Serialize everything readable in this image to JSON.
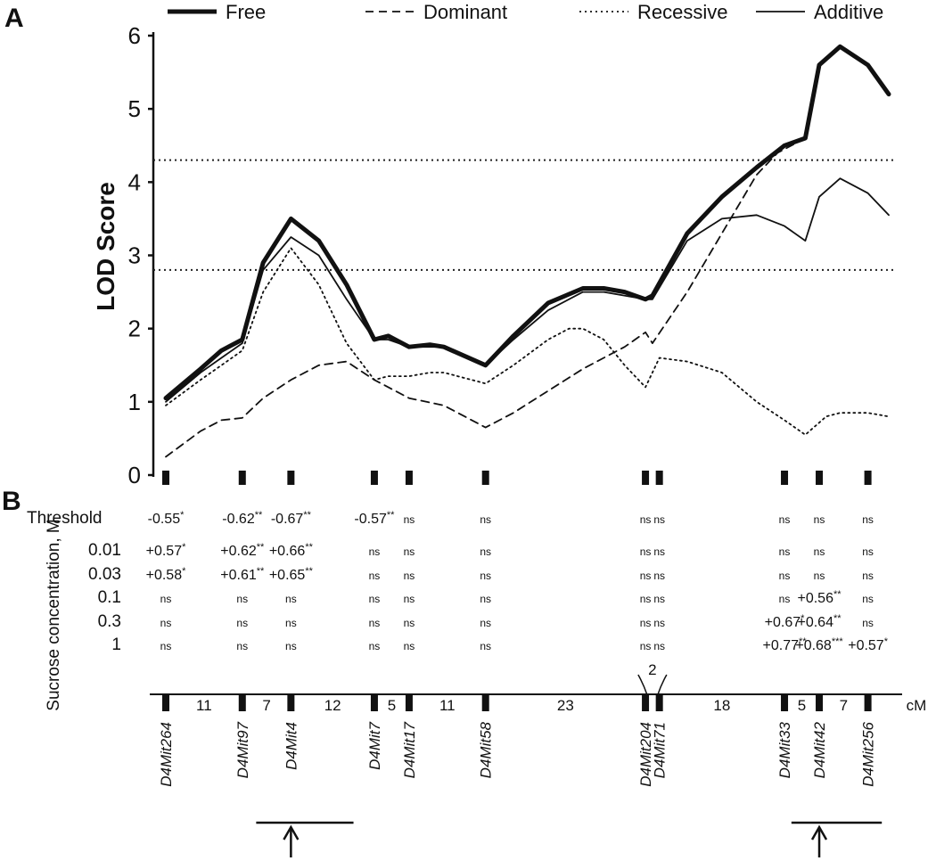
{
  "panel_a": "A",
  "panel_b": "B",
  "chart_data": {
    "type": "line",
    "ylabel": "LOD Score",
    "ylim": [
      0,
      6
    ],
    "yticks": [
      0,
      1,
      2,
      3,
      4,
      5,
      6
    ],
    "xlim": [
      0,
      104
    ],
    "xunit": "cM",
    "thresholds": [
      2.8,
      4.3
    ],
    "legend": [
      {
        "name": "Free",
        "style": "thick"
      },
      {
        "name": "Dominant",
        "style": "dashed"
      },
      {
        "name": "Recessive",
        "style": "dotted"
      },
      {
        "name": "Additive",
        "style": "solid"
      }
    ],
    "series": [
      {
        "name": "Free",
        "style": "thick",
        "points": [
          [
            0,
            1.05
          ],
          [
            5,
            1.45
          ],
          [
            8,
            1.7
          ],
          [
            11,
            1.85
          ],
          [
            14,
            2.9
          ],
          [
            18,
            3.5
          ],
          [
            22,
            3.2
          ],
          [
            26,
            2.6
          ],
          [
            30,
            1.85
          ],
          [
            32,
            1.9
          ],
          [
            35,
            1.75
          ],
          [
            38,
            1.78
          ],
          [
            40,
            1.75
          ],
          [
            46,
            1.5
          ],
          [
            50,
            1.9
          ],
          [
            55,
            2.35
          ],
          [
            60,
            2.55
          ],
          [
            63,
            2.55
          ],
          [
            66,
            2.5
          ],
          [
            69,
            2.4
          ],
          [
            70,
            2.45
          ],
          [
            75,
            3.3
          ],
          [
            80,
            3.8
          ],
          [
            85,
            4.2
          ],
          [
            89,
            4.5
          ],
          [
            92,
            4.6
          ],
          [
            94,
            5.6
          ],
          [
            97,
            5.85
          ],
          [
            101,
            5.6
          ],
          [
            104,
            5.2
          ]
        ]
      },
      {
        "name": "Additive",
        "style": "solid",
        "points": [
          [
            0,
            1.0
          ],
          [
            5,
            1.4
          ],
          [
            8,
            1.6
          ],
          [
            11,
            1.8
          ],
          [
            14,
            2.8
          ],
          [
            18,
            3.25
          ],
          [
            22,
            3.0
          ],
          [
            26,
            2.4
          ],
          [
            30,
            1.85
          ],
          [
            32,
            1.85
          ],
          [
            35,
            1.75
          ],
          [
            40,
            1.75
          ],
          [
            46,
            1.5
          ],
          [
            50,
            1.85
          ],
          [
            55,
            2.25
          ],
          [
            60,
            2.5
          ],
          [
            63,
            2.5
          ],
          [
            69,
            2.4
          ],
          [
            70,
            2.4
          ],
          [
            75,
            3.2
          ],
          [
            80,
            3.5
          ],
          [
            85,
            3.55
          ],
          [
            89,
            3.4
          ],
          [
            92,
            3.2
          ],
          [
            94,
            3.8
          ],
          [
            97,
            4.05
          ],
          [
            101,
            3.85
          ],
          [
            104,
            3.55
          ]
        ]
      },
      {
        "name": "Recessive",
        "style": "dotted",
        "points": [
          [
            0,
            0.95
          ],
          [
            5,
            1.3
          ],
          [
            8,
            1.5
          ],
          [
            11,
            1.7
          ],
          [
            14,
            2.5
          ],
          [
            18,
            3.1
          ],
          [
            22,
            2.6
          ],
          [
            26,
            1.8
          ],
          [
            30,
            1.3
          ],
          [
            32,
            1.35
          ],
          [
            35,
            1.35
          ],
          [
            38,
            1.4
          ],
          [
            40,
            1.4
          ],
          [
            46,
            1.25
          ],
          [
            50,
            1.5
          ],
          [
            55,
            1.85
          ],
          [
            58,
            2.0
          ],
          [
            60,
            2.0
          ],
          [
            63,
            1.85
          ],
          [
            66,
            1.5
          ],
          [
            69,
            1.2
          ],
          [
            71,
            1.6
          ],
          [
            75,
            1.55
          ],
          [
            80,
            1.4
          ],
          [
            85,
            1.0
          ],
          [
            89,
            0.75
          ],
          [
            92,
            0.55
          ],
          [
            95,
            0.8
          ],
          [
            97,
            0.85
          ],
          [
            101,
            0.85
          ],
          [
            104,
            0.8
          ]
        ]
      },
      {
        "name": "Dominant",
        "style": "dashed",
        "points": [
          [
            0,
            0.25
          ],
          [
            5,
            0.6
          ],
          [
            8,
            0.75
          ],
          [
            11,
            0.78
          ],
          [
            14,
            1.05
          ],
          [
            18,
            1.3
          ],
          [
            22,
            1.5
          ],
          [
            26,
            1.55
          ],
          [
            30,
            1.3
          ],
          [
            35,
            1.05
          ],
          [
            40,
            0.95
          ],
          [
            46,
            0.65
          ],
          [
            50,
            0.85
          ],
          [
            55,
            1.15
          ],
          [
            60,
            1.45
          ],
          [
            63,
            1.6
          ],
          [
            66,
            1.75
          ],
          [
            69,
            1.95
          ],
          [
            70,
            1.8
          ],
          [
            75,
            2.5
          ],
          [
            80,
            3.3
          ],
          [
            85,
            4.1
          ],
          [
            88,
            4.4
          ],
          [
            92,
            4.6
          ],
          [
            94,
            5.6
          ],
          [
            97,
            5.85
          ],
          [
            101,
            5.6
          ],
          [
            104,
            5.2
          ]
        ]
      }
    ],
    "markers": [
      {
        "name": "D4Mit264",
        "cM": 0
      },
      {
        "name": "D4Mit97",
        "cM": 11
      },
      {
        "name": "D4Mit4",
        "cM": 18
      },
      {
        "name": "D4Mit7",
        "cM": 30
      },
      {
        "name": "D4Mit17",
        "cM": 35
      },
      {
        "name": "D4Mit58",
        "cM": 46
      },
      {
        "name": "D4Mit204",
        "cM": 69
      },
      {
        "name": "D4Mit71",
        "cM": 71
      },
      {
        "name": "D4Mit33",
        "cM": 89
      },
      {
        "name": "D4Mit42",
        "cM": 94
      },
      {
        "name": "D4Mit256",
        "cM": 101
      }
    ],
    "intervals": [
      {
        "label": "11",
        "cM": 5.5
      },
      {
        "label": "7",
        "cM": 14.5
      },
      {
        "label": "12",
        "cM": 24
      },
      {
        "label": "5",
        "cM": 32.5
      },
      {
        "label": "11",
        "cM": 40.5
      },
      {
        "label": "23",
        "cM": 57.5
      },
      {
        "label": "2",
        "cM": 70,
        "raised": true
      },
      {
        "label": "18",
        "cM": 80
      },
      {
        "label": "5",
        "cM": 91.5
      },
      {
        "label": "7",
        "cM": 97.5
      }
    ],
    "unit_label": "cM",
    "ci_bars": [
      [
        13,
        27
      ],
      [
        90,
        103
      ]
    ],
    "peak_arrows": [
      18,
      94
    ]
  },
  "effects_table": {
    "ylabel": "Sucrose concentration, M",
    "rows": [
      {
        "label": "Threshold",
        "cells": [
          {
            "v": "-0.55",
            "s": "*"
          },
          {
            "v": "-0.62",
            "s": "**"
          },
          {
            "v": "-0.67",
            "s": "**"
          },
          {
            "v": "-0.57",
            "s": "**"
          },
          {
            "v": "ns"
          },
          {
            "v": "ns"
          },
          {
            "v": "ns"
          },
          {
            "v": "ns"
          },
          {
            "v": "ns"
          },
          {
            "v": "ns"
          },
          {
            "v": "ns"
          }
        ]
      },
      {
        "label": "0.01",
        "cells": [
          {
            "v": "+0.57",
            "s": "*"
          },
          {
            "v": "+0.62",
            "s": "**"
          },
          {
            "v": "+0.66",
            "s": "**"
          },
          {
            "v": "ns"
          },
          {
            "v": "ns"
          },
          {
            "v": "ns"
          },
          {
            "v": "ns"
          },
          {
            "v": "ns"
          },
          {
            "v": "ns"
          },
          {
            "v": "ns"
          },
          {
            "v": "ns"
          }
        ]
      },
      {
        "label": "0.03",
        "cells": [
          {
            "v": "+0.58",
            "s": "*"
          },
          {
            "v": "+0.61",
            "s": "**"
          },
          {
            "v": "+0.65",
            "s": "**"
          },
          {
            "v": "ns"
          },
          {
            "v": "ns"
          },
          {
            "v": "ns"
          },
          {
            "v": "ns"
          },
          {
            "v": "ns"
          },
          {
            "v": "ns"
          },
          {
            "v": "ns"
          },
          {
            "v": "ns"
          }
        ]
      },
      {
        "label": "0.1",
        "cells": [
          {
            "v": "ns"
          },
          {
            "v": "ns"
          },
          {
            "v": "ns"
          },
          {
            "v": "ns"
          },
          {
            "v": "ns"
          },
          {
            "v": "ns"
          },
          {
            "v": "ns"
          },
          {
            "v": "ns"
          },
          {
            "v": "ns"
          },
          {
            "v": "+0.56",
            "s": "**"
          },
          {
            "v": "ns"
          }
        ]
      },
      {
        "label": "0.3",
        "cells": [
          {
            "v": "ns"
          },
          {
            "v": "ns"
          },
          {
            "v": "ns"
          },
          {
            "v": "ns"
          },
          {
            "v": "ns"
          },
          {
            "v": "ns"
          },
          {
            "v": "ns"
          },
          {
            "v": "ns"
          },
          {
            "v": "+0.67",
            "s": "*"
          },
          {
            "v": "+0.64",
            "s": "**"
          },
          {
            "v": "ns"
          }
        ]
      },
      {
        "label": "1",
        "cells": [
          {
            "v": "ns"
          },
          {
            "v": "ns"
          },
          {
            "v": "ns"
          },
          {
            "v": "ns"
          },
          {
            "v": "ns"
          },
          {
            "v": "ns"
          },
          {
            "v": "ns"
          },
          {
            "v": "ns"
          },
          {
            "v": "+0.77",
            "s": "**"
          },
          {
            "v": "+0.68",
            "s": "***"
          },
          {
            "v": "+0.57",
            "s": "*"
          }
        ]
      }
    ]
  }
}
